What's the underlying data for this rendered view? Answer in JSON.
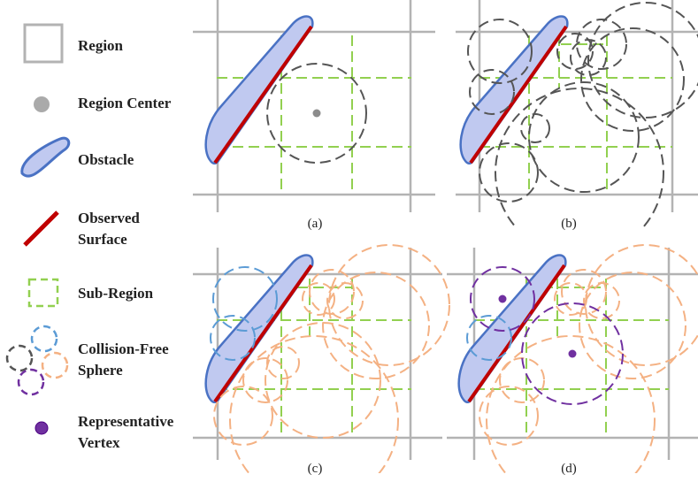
{
  "legend": {
    "region": "Region",
    "region_center": "Region Center",
    "obstacle": "Obstacle",
    "observed_surface_1": "Observed",
    "observed_surface_2": "Surface",
    "sub_region": "Sub-Region",
    "sphere_1": "Collision-Free",
    "sphere_2": "Sphere",
    "vertex_1": "Representative",
    "vertex_2": "Vertex"
  },
  "panels": [
    {
      "id": "a",
      "caption": "(a)"
    },
    {
      "id": "b",
      "caption": "(b)"
    },
    {
      "id": "c",
      "caption": "(c)"
    },
    {
      "id": "d",
      "caption": "(d)"
    }
  ],
  "colors": {
    "grid": "#b3b3b3",
    "center": "#8c8c8c",
    "obstacle_fill": "#c0c9f0",
    "obstacle_stroke": "#4a72c4",
    "surface": "#c00000",
    "sub_region": "#92d050",
    "sphere_gray": "#555555",
    "sphere_blue": "#5b9bd5",
    "sphere_orange": "#f4b183",
    "sphere_purple": "#7030a0",
    "vertex": "#7030a0"
  }
}
